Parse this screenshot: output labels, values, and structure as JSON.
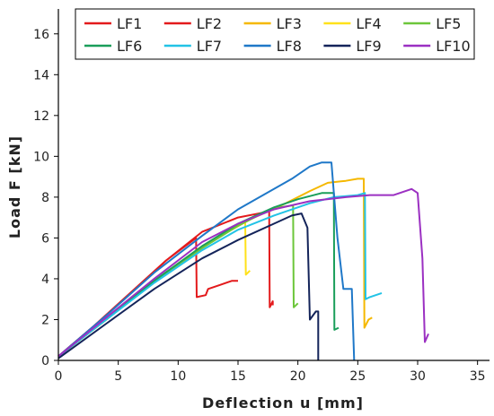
{
  "chart_data": {
    "type": "line",
    "xlabel": "Deflection u [mm]",
    "ylabel": "Load F [kN]",
    "xlim": [
      0,
      36
    ],
    "ylim": [
      0,
      17
    ],
    "xticks": [
      0,
      5,
      10,
      15,
      20,
      25,
      30,
      35
    ],
    "yticks": [
      0,
      2,
      4,
      6,
      8,
      10,
      12,
      14,
      16
    ],
    "grid": false,
    "legend_position": "top",
    "series": [
      {
        "name": "LF1",
        "color": "#e31a1c",
        "points": [
          [
            0,
            0.2
          ],
          [
            3,
            1.7
          ],
          [
            6,
            3.3
          ],
          [
            9,
            4.9
          ],
          [
            11.5,
            6.0
          ],
          [
            11.55,
            3.1
          ],
          [
            12.3,
            3.2
          ],
          [
            12.5,
            3.5
          ],
          [
            13.5,
            3.7
          ],
          [
            14.5,
            3.9
          ],
          [
            15.0,
            3.9
          ]
        ]
      },
      {
        "name": "LF2",
        "color": "#e31a1c",
        "points": [
          [
            0,
            0.2
          ],
          [
            3,
            1.7
          ],
          [
            6,
            3.3
          ],
          [
            9,
            4.9
          ],
          [
            12,
            6.3
          ],
          [
            15,
            7.0
          ],
          [
            17.6,
            7.3
          ],
          [
            17.65,
            2.6
          ],
          [
            17.9,
            2.9
          ],
          [
            17.9,
            2.7
          ]
        ]
      },
      {
        "name": "LF3",
        "color": "#f5b800",
        "points": [
          [
            0,
            0.2
          ],
          [
            4,
            2.0
          ],
          [
            8,
            3.9
          ],
          [
            12,
            5.6
          ],
          [
            16,
            6.9
          ],
          [
            19,
            7.7
          ],
          [
            21,
            8.3
          ],
          [
            22.5,
            8.7
          ],
          [
            24,
            8.8
          ],
          [
            25,
            8.9
          ],
          [
            25.5,
            8.9
          ],
          [
            25.55,
            1.6
          ],
          [
            25.9,
            2.0
          ],
          [
            26.2,
            2.1
          ]
        ]
      },
      {
        "name": "LF4",
        "color": "#ffe11a",
        "points": [
          [
            0,
            0.2
          ],
          [
            4,
            2.0
          ],
          [
            8,
            3.9
          ],
          [
            12,
            5.5
          ],
          [
            14.5,
            6.5
          ],
          [
            15.6,
            6.8
          ],
          [
            15.65,
            4.2
          ],
          [
            16.0,
            4.4
          ]
        ]
      },
      {
        "name": "LF5",
        "color": "#6cc63a",
        "points": [
          [
            0,
            0.2
          ],
          [
            4,
            2.0
          ],
          [
            8,
            3.9
          ],
          [
            12,
            5.5
          ],
          [
            15,
            6.6
          ],
          [
            17,
            7.2
          ],
          [
            18.5,
            7.5
          ],
          [
            19.6,
            7.6
          ],
          [
            19.65,
            2.6
          ],
          [
            20.0,
            2.8
          ]
        ]
      },
      {
        "name": "LF6",
        "color": "#1a9e5a",
        "points": [
          [
            0,
            0.2
          ],
          [
            4,
            2.0
          ],
          [
            8,
            3.9
          ],
          [
            12,
            5.6
          ],
          [
            15,
            6.7
          ],
          [
            18,
            7.5
          ],
          [
            20,
            7.9
          ],
          [
            22,
            8.2
          ],
          [
            23.0,
            8.2
          ],
          [
            23.05,
            1.5
          ],
          [
            23.4,
            1.6
          ]
        ]
      },
      {
        "name": "LF7",
        "color": "#22c3e6",
        "points": [
          [
            0,
            0.2
          ],
          [
            4,
            2.0
          ],
          [
            8,
            3.8
          ],
          [
            12,
            5.4
          ],
          [
            15,
            6.4
          ],
          [
            18,
            7.1
          ],
          [
            21,
            7.7
          ],
          [
            23,
            8.0
          ],
          [
            25,
            8.1
          ],
          [
            25.6,
            8.2
          ],
          [
            25.65,
            3.0
          ],
          [
            26,
            3.1
          ],
          [
            27,
            3.3
          ]
        ]
      },
      {
        "name": "LF8",
        "color": "#1f78c8",
        "points": [
          [
            0,
            0.2
          ],
          [
            4,
            2.2
          ],
          [
            8,
            4.3
          ],
          [
            12,
            6.1
          ],
          [
            15,
            7.4
          ],
          [
            18,
            8.4
          ],
          [
            19.5,
            8.9
          ],
          [
            21,
            9.5
          ],
          [
            22,
            9.7
          ],
          [
            22.8,
            9.7
          ],
          [
            23.3,
            6.0
          ],
          [
            23.8,
            3.5
          ],
          [
            24.5,
            3.5
          ],
          [
            24.7,
            0
          ]
        ]
      },
      {
        "name": "LF9",
        "color": "#14245a",
        "points": [
          [
            0,
            0.1
          ],
          [
            4,
            1.8
          ],
          [
            8,
            3.5
          ],
          [
            12,
            5.0
          ],
          [
            15,
            5.9
          ],
          [
            18,
            6.7
          ],
          [
            19.5,
            7.1
          ],
          [
            20.3,
            7.2
          ],
          [
            20.8,
            6.5
          ],
          [
            21.0,
            2.0
          ],
          [
            21.5,
            2.4
          ],
          [
            21.7,
            2.4
          ],
          [
            21.7,
            0
          ]
        ]
      },
      {
        "name": "LF10",
        "color": "#9b30c2",
        "points": [
          [
            0,
            0.2
          ],
          [
            4,
            2.1
          ],
          [
            8,
            4.0
          ],
          [
            12,
            5.8
          ],
          [
            15,
            6.7
          ],
          [
            18,
            7.4
          ],
          [
            21,
            7.8
          ],
          [
            24,
            8.0
          ],
          [
            26,
            8.1
          ],
          [
            28,
            8.1
          ],
          [
            29.5,
            8.4
          ],
          [
            30.0,
            8.2
          ],
          [
            30.4,
            5.0
          ],
          [
            30.6,
            0.9
          ],
          [
            30.9,
            1.3
          ]
        ]
      }
    ]
  }
}
